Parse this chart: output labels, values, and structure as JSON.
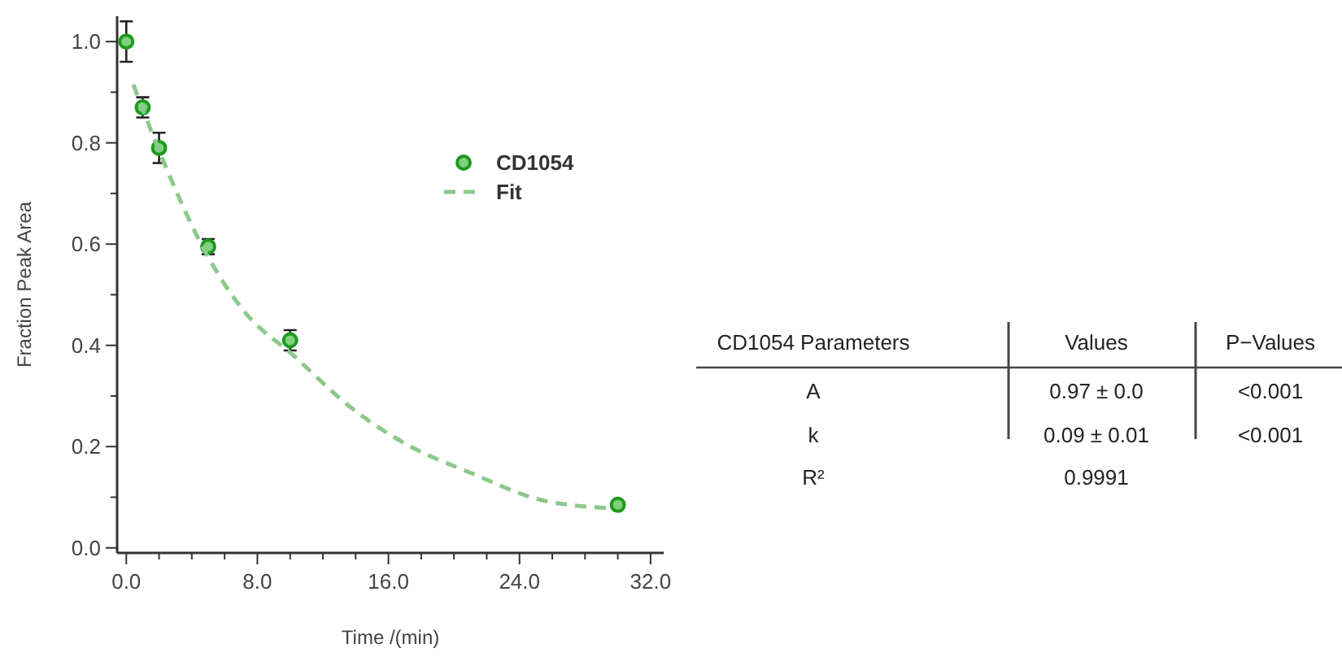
{
  "chart_data": [
    {
      "type": "scatter",
      "xlabel": "Time /(min)",
      "ylabel": "Fraction Peak Area",
      "xlim": [
        -0.56,
        32.8
      ],
      "ylim": [
        -0.01,
        1.05
      ],
      "xticks": [
        {
          "value": 0,
          "label": "0.0"
        },
        {
          "value": 2,
          "label": null
        },
        {
          "value": 4,
          "label": null
        },
        {
          "value": 6,
          "label": null
        },
        {
          "value": 8,
          "label": "8.0"
        },
        {
          "value": 10,
          "label": null
        },
        {
          "value": 12,
          "label": null
        },
        {
          "value": 14,
          "label": null
        },
        {
          "value": 16,
          "label": "16.0"
        },
        {
          "value": 18,
          "label": null
        },
        {
          "value": 20,
          "label": null
        },
        {
          "value": 22,
          "label": null
        },
        {
          "value": 24,
          "label": "24.0"
        },
        {
          "value": 26,
          "label": null
        },
        {
          "value": 28,
          "label": null
        },
        {
          "value": 30,
          "label": null
        },
        {
          "value": 32,
          "label": "32.0"
        }
      ],
      "yticks": [
        {
          "value": 0,
          "label": "0.0"
        },
        {
          "value": 0.1,
          "label": null
        },
        {
          "value": 0.2,
          "label": "0.2"
        },
        {
          "value": 0.3,
          "label": null
        },
        {
          "value": 0.4,
          "label": "0.4"
        },
        {
          "value": 0.5,
          "label": null
        },
        {
          "value": 0.6,
          "label": "0.6"
        },
        {
          "value": 0.7,
          "label": null
        },
        {
          "value": 0.8,
          "label": "0.8"
        },
        {
          "value": 0.9,
          "label": null
        },
        {
          "value": 1,
          "label": "1.0"
        }
      ],
      "grid": false,
      "legend": "top right",
      "series": [
        {
          "name": "CD1054",
          "type": "scatter",
          "marker": "circle",
          "color": "#1e9a1e",
          "x": [
            0,
            1,
            2,
            5,
            10,
            30
          ],
          "values": [
            1.0,
            0.87,
            0.79,
            0.595,
            0.41,
            0.085
          ],
          "errors": [
            0.04,
            0.02,
            0.03,
            0.015,
            0.02,
            null
          ]
        },
        {
          "name": "Fit",
          "type": "line",
          "marker": "none",
          "line_style": "dashed",
          "color": "#8cc88c",
          "x": [
            0.43,
            2.25,
            4.9,
            7.2,
            10.2,
            13.8,
            16.8,
            21.1,
            25.4,
            29.7
          ],
          "values": [
            0.915,
            0.765,
            0.58,
            0.467,
            0.38,
            0.275,
            0.21,
            0.147,
            0.094,
            0.078
          ]
        }
      ]
    },
    {
      "type": "other",
      "annotations": [
        "CD1054 Parameters",
        "Values",
        "P−Values",
        "A",
        "0.97 ± 0.0",
        "<0.001",
        "k",
        "0.09 ± 0.01",
        "<0.001",
        "R²",
        "0.9991"
      ]
    }
  ]
}
